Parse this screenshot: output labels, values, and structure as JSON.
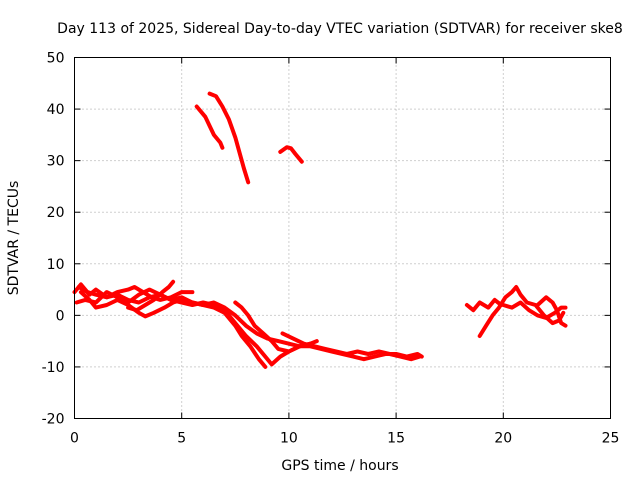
{
  "chart_data": {
    "type": "line",
    "title": "Day 113 of 2025, Sidereal Day-to-day VTEC variation (SDTVAR) for receiver ske8",
    "xlabel": "GPS time / hours",
    "ylabel": "SDTVAR / TECUs",
    "xlim": [
      0,
      25
    ],
    "ylim": [
      -20,
      50
    ],
    "xticks": [
      0,
      5,
      10,
      15,
      20,
      25
    ],
    "yticks": [
      -20,
      -10,
      0,
      10,
      20,
      30,
      40,
      50
    ],
    "grid": true,
    "color": "#ff0000",
    "series": [
      {
        "name": "trace-1",
        "points": [
          [
            5.7,
            40.5
          ],
          [
            6.1,
            38.5
          ],
          [
            6.5,
            35.0
          ],
          [
            6.8,
            33.5
          ],
          [
            6.9,
            32.5
          ]
        ]
      },
      {
        "name": "trace-2",
        "points": [
          [
            6.3,
            43.0
          ],
          [
            6.6,
            42.5
          ],
          [
            6.9,
            40.5
          ],
          [
            7.2,
            38.0
          ],
          [
            7.5,
            34.5
          ],
          [
            7.7,
            31.5
          ],
          [
            7.9,
            28.5
          ],
          [
            8.1,
            25.8
          ]
        ]
      },
      {
        "name": "trace-3",
        "points": [
          [
            9.6,
            31.7
          ],
          [
            9.9,
            32.6
          ],
          [
            10.1,
            32.4
          ],
          [
            10.3,
            31.3
          ],
          [
            10.6,
            29.8
          ]
        ]
      },
      {
        "name": "trace-4",
        "points": [
          [
            0.0,
            4.5
          ],
          [
            0.3,
            6.0
          ],
          [
            0.7,
            4.0
          ],
          [
            1.0,
            5.0
          ],
          [
            1.5,
            3.5
          ],
          [
            2.0,
            4.0
          ],
          [
            2.5,
            3.0
          ],
          [
            3.0,
            2.5
          ],
          [
            3.5,
            3.5
          ],
          [
            4.0,
            4.0
          ],
          [
            4.5,
            3.0
          ],
          [
            5.0,
            3.5
          ],
          [
            5.5,
            2.5
          ],
          [
            6.0,
            2.0
          ],
          [
            6.5,
            2.5
          ],
          [
            7.0,
            1.5
          ],
          [
            7.5,
            0.0
          ],
          [
            8.0,
            -2.0
          ],
          [
            8.5,
            -3.5
          ],
          [
            9.0,
            -4.5
          ],
          [
            9.5,
            -5.0
          ],
          [
            10.0,
            -5.5
          ],
          [
            10.5,
            -6.0
          ],
          [
            11.0,
            -6.0
          ],
          [
            11.5,
            -6.5
          ],
          [
            12.0,
            -7.0
          ],
          [
            12.5,
            -7.5
          ],
          [
            13.0,
            -8.0
          ],
          [
            13.5,
            -8.5
          ],
          [
            14.0,
            -8.0
          ],
          [
            14.5,
            -7.5
          ],
          [
            15.0,
            -7.5
          ],
          [
            15.5,
            -8.0
          ],
          [
            16.0,
            -7.5
          ],
          [
            16.2,
            -8.0
          ]
        ]
      },
      {
        "name": "trace-5",
        "points": [
          [
            0.1,
            2.5
          ],
          [
            0.5,
            3.0
          ],
          [
            1.0,
            2.5
          ],
          [
            1.5,
            4.5
          ],
          [
            2.0,
            3.5
          ],
          [
            2.5,
            2.5
          ],
          [
            3.0,
            4.0
          ],
          [
            3.5,
            5.0
          ],
          [
            4.0,
            4.0
          ],
          [
            4.5,
            3.0
          ],
          [
            5.0,
            2.5
          ],
          [
            5.5,
            2.0
          ],
          [
            6.0,
            2.5
          ],
          [
            6.5,
            2.0
          ],
          [
            7.0,
            1.0
          ],
          [
            7.5,
            -1.5
          ],
          [
            8.0,
            -4.0
          ],
          [
            8.5,
            -6.0
          ],
          [
            8.9,
            -8.0
          ],
          [
            9.2,
            -9.5
          ],
          [
            9.6,
            -8.0
          ],
          [
            10.0,
            -7.0
          ],
          [
            10.5,
            -6.0
          ],
          [
            11.0,
            -5.5
          ],
          [
            11.3,
            -5.0
          ]
        ]
      },
      {
        "name": "trace-6",
        "points": [
          [
            0.3,
            4.5
          ],
          [
            0.7,
            3.0
          ],
          [
            1.0,
            1.5
          ],
          [
            1.5,
            2.0
          ],
          [
            2.0,
            3.0
          ],
          [
            2.5,
            2.0
          ],
          [
            3.0,
            0.5
          ],
          [
            3.3,
            -0.2
          ],
          [
            3.7,
            0.5
          ],
          [
            4.2,
            1.5
          ],
          [
            4.6,
            2.5
          ],
          [
            5.0,
            3.0
          ],
          [
            5.5,
            2.5
          ],
          [
            6.0,
            2.0
          ],
          [
            6.5,
            1.5
          ],
          [
            7.0,
            0.5
          ],
          [
            7.5,
            -2.0
          ],
          [
            7.8,
            -4.0
          ],
          [
            8.2,
            -6.0
          ],
          [
            8.6,
            -8.5
          ],
          [
            8.9,
            -10.0
          ]
        ]
      },
      {
        "name": "trace-7",
        "points": [
          [
            0.2,
            5.5
          ],
          [
            0.6,
            4.5
          ],
          [
            1.0,
            4.0
          ],
          [
            1.5,
            3.5
          ],
          [
            2.0,
            4.5
          ],
          [
            2.5,
            5.0
          ],
          [
            2.8,
            5.5
          ],
          [
            3.2,
            4.5
          ],
          [
            3.6,
            3.5
          ],
          [
            4.0,
            3.0
          ],
          [
            4.5,
            3.5
          ],
          [
            5.0,
            4.5
          ],
          [
            5.5,
            4.5
          ]
        ]
      },
      {
        "name": "trace-8",
        "points": [
          [
            2.5,
            1.5
          ],
          [
            2.9,
            1.0
          ],
          [
            3.3,
            2.0
          ],
          [
            3.7,
            3.0
          ],
          [
            4.1,
            4.5
          ],
          [
            4.4,
            5.5
          ],
          [
            4.6,
            6.5
          ]
        ]
      },
      {
        "name": "trace-9",
        "points": [
          [
            7.5,
            2.5
          ],
          [
            7.8,
            1.5
          ],
          [
            8.1,
            0.0
          ],
          [
            8.4,
            -2.0
          ],
          [
            8.8,
            -3.5
          ],
          [
            9.2,
            -5.0
          ],
          [
            9.5,
            -6.5
          ],
          [
            10.0,
            -7.0
          ],
          [
            10.5,
            -6.0
          ],
          [
            11.0,
            -5.5
          ]
        ]
      },
      {
        "name": "trace-10",
        "points": [
          [
            9.7,
            -3.5
          ],
          [
            10.2,
            -4.5
          ],
          [
            10.7,
            -5.5
          ],
          [
            11.2,
            -6.0
          ],
          [
            11.7,
            -6.5
          ],
          [
            12.2,
            -7.0
          ],
          [
            12.7,
            -7.5
          ],
          [
            13.2,
            -7.0
          ],
          [
            13.7,
            -7.5
          ],
          [
            14.2,
            -7.0
          ],
          [
            14.7,
            -7.5
          ],
          [
            15.2,
            -8.0
          ],
          [
            15.7,
            -8.5
          ],
          [
            16.1,
            -8.0
          ]
        ]
      },
      {
        "name": "trace-11",
        "points": [
          [
            18.3,
            2.0
          ],
          [
            18.6,
            1.0
          ],
          [
            18.9,
            2.5
          ],
          [
            19.3,
            1.5
          ],
          [
            19.6,
            3.0
          ],
          [
            19.9,
            2.0
          ]
        ]
      },
      {
        "name": "trace-12",
        "points": [
          [
            18.9,
            -4.0
          ],
          [
            19.2,
            -2.0
          ],
          [
            19.5,
            0.0
          ],
          [
            19.8,
            1.5
          ],
          [
            20.1,
            3.5
          ],
          [
            20.4,
            4.5
          ],
          [
            20.6,
            5.5
          ],
          [
            20.8,
            4.0
          ],
          [
            21.1,
            2.5
          ],
          [
            21.5,
            2.0
          ],
          [
            21.9,
            0.0
          ],
          [
            22.3,
            -1.5
          ],
          [
            22.6,
            -1.0
          ],
          [
            22.8,
            0.5
          ]
        ]
      },
      {
        "name": "trace-13",
        "points": [
          [
            20.0,
            2.0
          ],
          [
            20.4,
            1.5
          ],
          [
            20.8,
            2.5
          ],
          [
            21.2,
            1.0
          ],
          [
            21.6,
            0.0
          ],
          [
            22.0,
            -0.5
          ],
          [
            22.4,
            0.5
          ],
          [
            22.7,
            1.5
          ],
          [
            22.9,
            1.5
          ]
        ]
      },
      {
        "name": "trace-14",
        "points": [
          [
            21.6,
            2.0
          ],
          [
            22.0,
            3.5
          ],
          [
            22.3,
            2.5
          ],
          [
            22.5,
            1.0
          ],
          [
            22.7,
            -1.5
          ],
          [
            22.9,
            -2.0
          ]
        ]
      }
    ]
  }
}
